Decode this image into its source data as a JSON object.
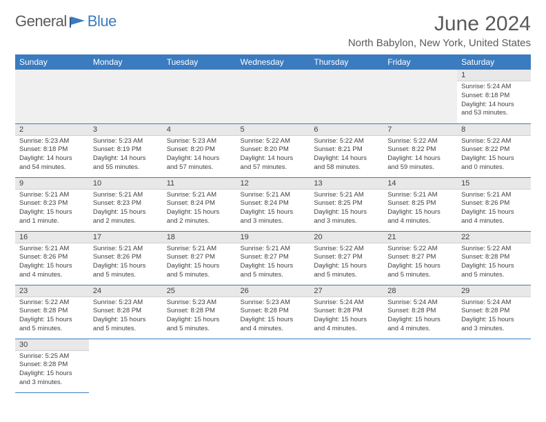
{
  "logo": {
    "part1": "General",
    "part2": "Blue"
  },
  "title": "June 2024",
  "location": "North Babylon, New York, United States",
  "colors": {
    "header_bg": "#3b7bbf",
    "header_text": "#ffffff",
    "text": "#404040",
    "title_text": "#5a5a5a",
    "daynum_bg": "#e8e8e8",
    "row_divider": "#3b7bbf"
  },
  "weekdays": [
    "Sunday",
    "Monday",
    "Tuesday",
    "Wednesday",
    "Thursday",
    "Friday",
    "Saturday"
  ],
  "grid": [
    [
      null,
      null,
      null,
      null,
      null,
      null,
      {
        "n": 1,
        "sr": "5:24 AM",
        "ss": "8:18 PM",
        "dl": "14 hours and 53 minutes."
      }
    ],
    [
      {
        "n": 2,
        "sr": "5:23 AM",
        "ss": "8:18 PM",
        "dl": "14 hours and 54 minutes."
      },
      {
        "n": 3,
        "sr": "5:23 AM",
        "ss": "8:19 PM",
        "dl": "14 hours and 55 minutes."
      },
      {
        "n": 4,
        "sr": "5:23 AM",
        "ss": "8:20 PM",
        "dl": "14 hours and 57 minutes."
      },
      {
        "n": 5,
        "sr": "5:22 AM",
        "ss": "8:20 PM",
        "dl": "14 hours and 57 minutes."
      },
      {
        "n": 6,
        "sr": "5:22 AM",
        "ss": "8:21 PM",
        "dl": "14 hours and 58 minutes."
      },
      {
        "n": 7,
        "sr": "5:22 AM",
        "ss": "8:22 PM",
        "dl": "14 hours and 59 minutes."
      },
      {
        "n": 8,
        "sr": "5:22 AM",
        "ss": "8:22 PM",
        "dl": "15 hours and 0 minutes."
      }
    ],
    [
      {
        "n": 9,
        "sr": "5:21 AM",
        "ss": "8:23 PM",
        "dl": "15 hours and 1 minute."
      },
      {
        "n": 10,
        "sr": "5:21 AM",
        "ss": "8:23 PM",
        "dl": "15 hours and 2 minutes."
      },
      {
        "n": 11,
        "sr": "5:21 AM",
        "ss": "8:24 PM",
        "dl": "15 hours and 2 minutes."
      },
      {
        "n": 12,
        "sr": "5:21 AM",
        "ss": "8:24 PM",
        "dl": "15 hours and 3 minutes."
      },
      {
        "n": 13,
        "sr": "5:21 AM",
        "ss": "8:25 PM",
        "dl": "15 hours and 3 minutes."
      },
      {
        "n": 14,
        "sr": "5:21 AM",
        "ss": "8:25 PM",
        "dl": "15 hours and 4 minutes."
      },
      {
        "n": 15,
        "sr": "5:21 AM",
        "ss": "8:26 PM",
        "dl": "15 hours and 4 minutes."
      }
    ],
    [
      {
        "n": 16,
        "sr": "5:21 AM",
        "ss": "8:26 PM",
        "dl": "15 hours and 4 minutes."
      },
      {
        "n": 17,
        "sr": "5:21 AM",
        "ss": "8:26 PM",
        "dl": "15 hours and 5 minutes."
      },
      {
        "n": 18,
        "sr": "5:21 AM",
        "ss": "8:27 PM",
        "dl": "15 hours and 5 minutes."
      },
      {
        "n": 19,
        "sr": "5:21 AM",
        "ss": "8:27 PM",
        "dl": "15 hours and 5 minutes."
      },
      {
        "n": 20,
        "sr": "5:22 AM",
        "ss": "8:27 PM",
        "dl": "15 hours and 5 minutes."
      },
      {
        "n": 21,
        "sr": "5:22 AM",
        "ss": "8:27 PM",
        "dl": "15 hours and 5 minutes."
      },
      {
        "n": 22,
        "sr": "5:22 AM",
        "ss": "8:28 PM",
        "dl": "15 hours and 5 minutes."
      }
    ],
    [
      {
        "n": 23,
        "sr": "5:22 AM",
        "ss": "8:28 PM",
        "dl": "15 hours and 5 minutes."
      },
      {
        "n": 24,
        "sr": "5:23 AM",
        "ss": "8:28 PM",
        "dl": "15 hours and 5 minutes."
      },
      {
        "n": 25,
        "sr": "5:23 AM",
        "ss": "8:28 PM",
        "dl": "15 hours and 5 minutes."
      },
      {
        "n": 26,
        "sr": "5:23 AM",
        "ss": "8:28 PM",
        "dl": "15 hours and 4 minutes."
      },
      {
        "n": 27,
        "sr": "5:24 AM",
        "ss": "8:28 PM",
        "dl": "15 hours and 4 minutes."
      },
      {
        "n": 28,
        "sr": "5:24 AM",
        "ss": "8:28 PM",
        "dl": "15 hours and 4 minutes."
      },
      {
        "n": 29,
        "sr": "5:24 AM",
        "ss": "8:28 PM",
        "dl": "15 hours and 3 minutes."
      }
    ],
    [
      {
        "n": 30,
        "sr": "5:25 AM",
        "ss": "8:28 PM",
        "dl": "15 hours and 3 minutes."
      },
      null,
      null,
      null,
      null,
      null,
      null
    ]
  ],
  "labels": {
    "sunrise": "Sunrise:",
    "sunset": "Sunset:",
    "daylight": "Daylight:"
  }
}
